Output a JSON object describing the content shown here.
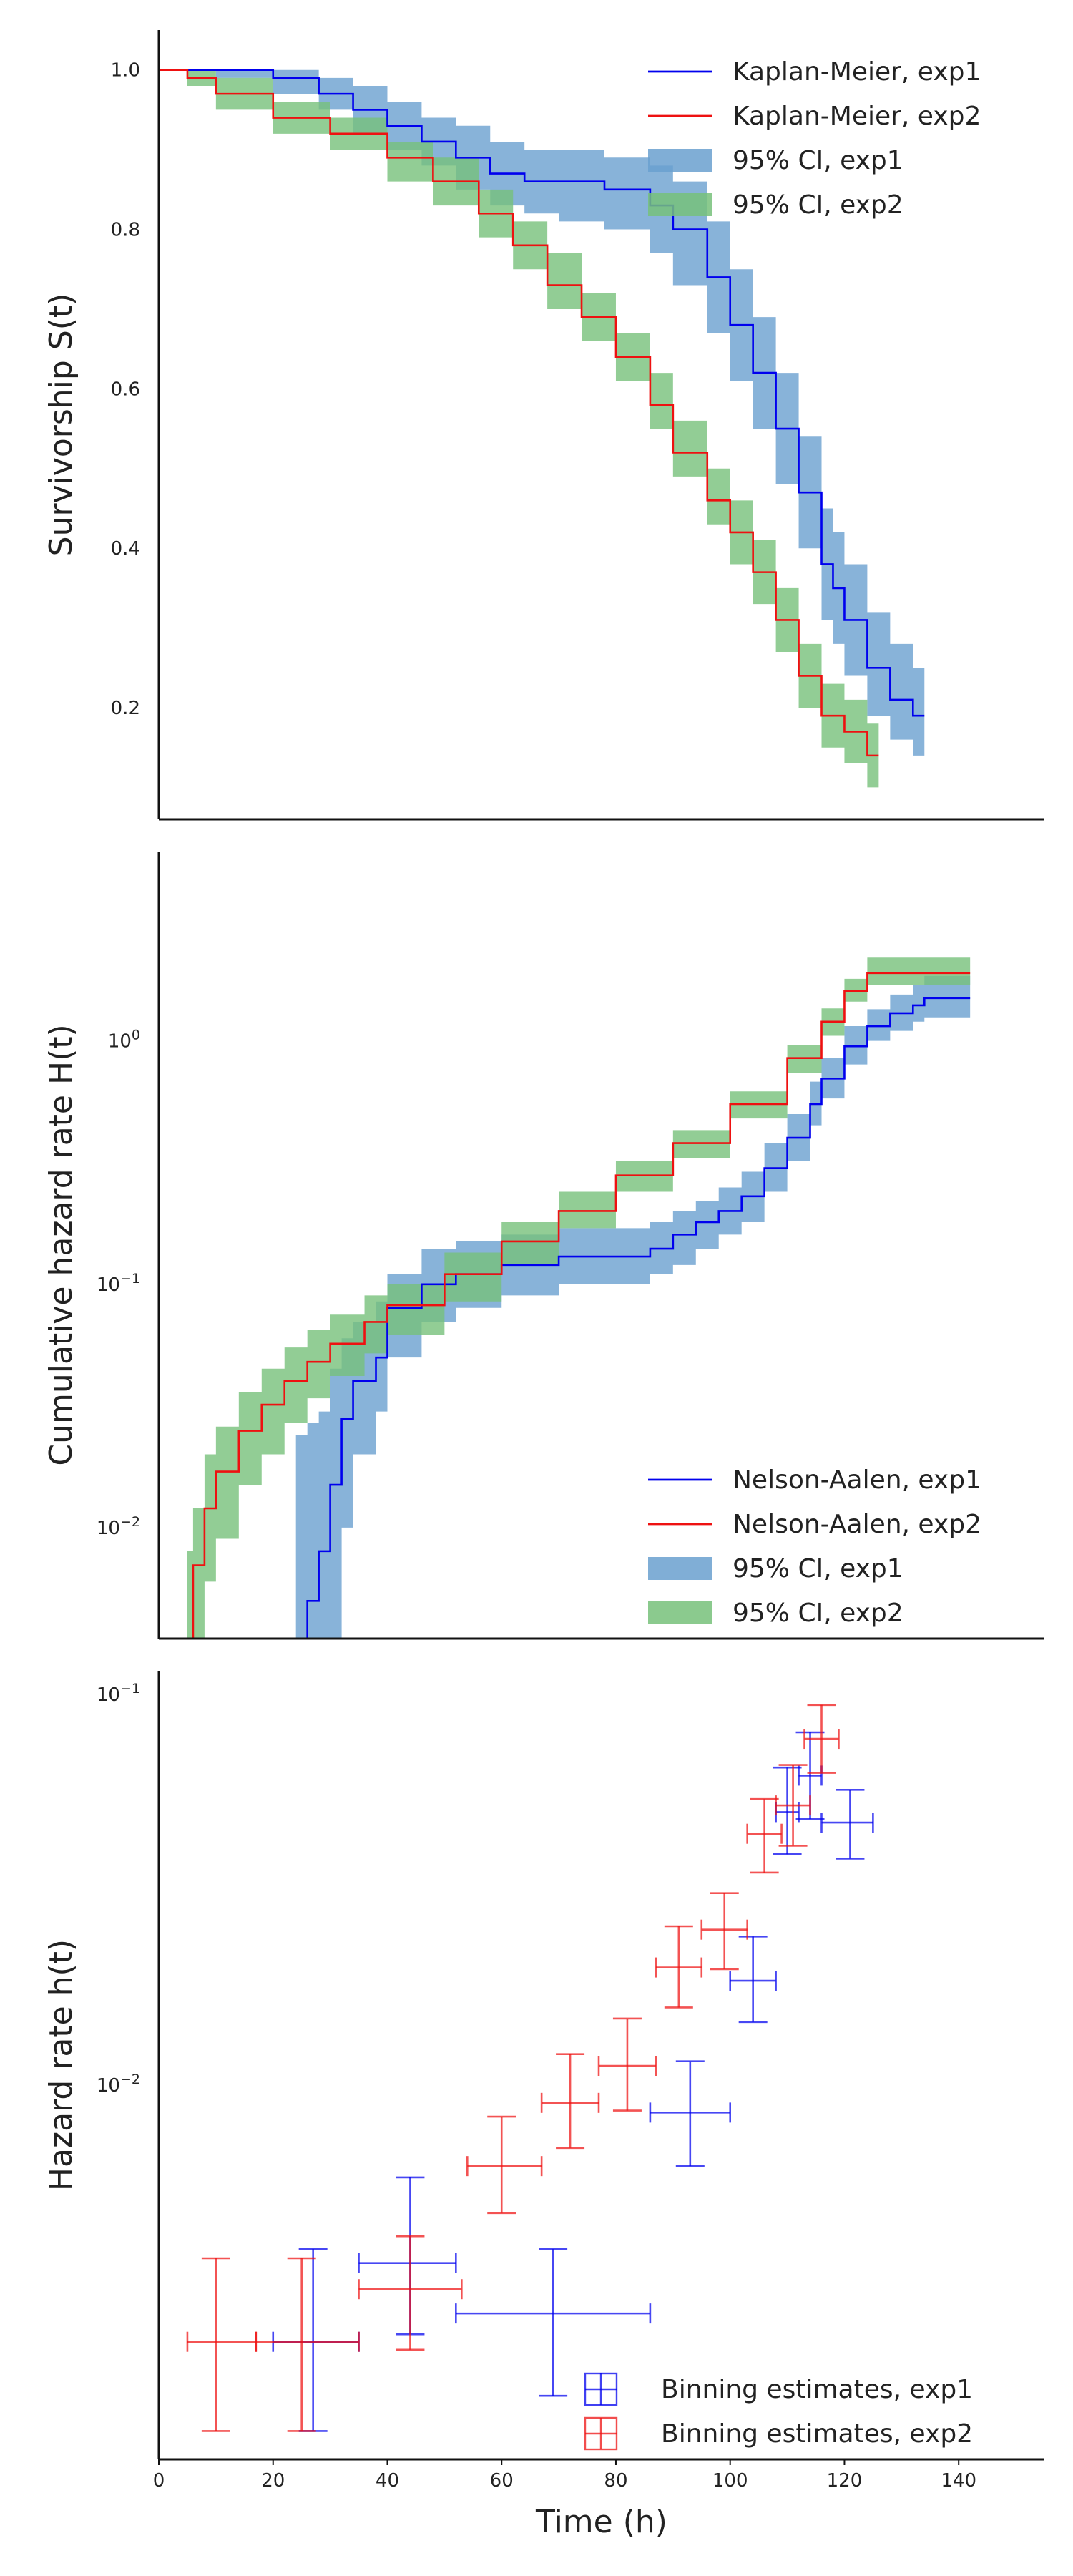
{
  "colors": {
    "exp1_line": "#0000ee",
    "exp2_line": "#ee1111",
    "exp1_band": "#6aa0cf",
    "exp2_band": "#77c17a",
    "axis": "#111111"
  },
  "chart_data": [
    {
      "type": "line",
      "ylabel": "Survivorship S(t)",
      "xlim": [
        0,
        155
      ],
      "ylim": [
        0.06,
        1.05
      ],
      "yscale": "linear",
      "yticks": [
        0.2,
        0.4,
        0.6,
        0.8,
        1.0
      ],
      "ytick_labels": [
        "0.2",
        "0.4",
        "0.6",
        "0.8",
        "1.0"
      ],
      "legend_position": "top-right",
      "legend": [
        "Kaplan-Meier, exp1",
        "Kaplan-Meier, exp2",
        "95% CI, exp1",
        "95% CI, exp2"
      ],
      "series": [
        {
          "name": "Kaplan-Meier, exp1",
          "x": [
            0,
            10,
            20,
            28,
            34,
            40,
            46,
            52,
            58,
            64,
            70,
            78,
            86,
            90,
            96,
            100,
            104,
            108,
            112,
            116,
            118,
            120,
            124,
            128,
            132,
            134
          ],
          "y": [
            1.0,
            1.0,
            0.99,
            0.97,
            0.95,
            0.93,
            0.91,
            0.89,
            0.87,
            0.86,
            0.86,
            0.85,
            0.83,
            0.8,
            0.74,
            0.68,
            0.62,
            0.55,
            0.47,
            0.38,
            0.35,
            0.31,
            0.25,
            0.21,
            0.19,
            0.19
          ]
        },
        {
          "name": "Kaplan-Meier, exp2",
          "x": [
            0,
            5,
            10,
            20,
            30,
            40,
            48,
            56,
            62,
            68,
            74,
            80,
            86,
            90,
            96,
            100,
            104,
            108,
            112,
            116,
            120,
            124,
            126
          ],
          "y": [
            1.0,
            0.99,
            0.97,
            0.94,
            0.92,
            0.89,
            0.86,
            0.82,
            0.78,
            0.73,
            0.69,
            0.64,
            0.58,
            0.52,
            0.46,
            0.42,
            0.37,
            0.31,
            0.24,
            0.19,
            0.17,
            0.14,
            0.14
          ]
        },
        {
          "name": "95% CI, exp1",
          "x": [
            0,
            10,
            20,
            28,
            34,
            40,
            46,
            52,
            58,
            64,
            70,
            78,
            86,
            90,
            96,
            100,
            104,
            108,
            112,
            116,
            118,
            120,
            124,
            128,
            132,
            134
          ],
          "lower": [
            1.0,
            0.99,
            0.97,
            0.95,
            0.92,
            0.9,
            0.88,
            0.85,
            0.83,
            0.82,
            0.81,
            0.8,
            0.77,
            0.73,
            0.67,
            0.61,
            0.55,
            0.48,
            0.4,
            0.31,
            0.28,
            0.24,
            0.19,
            0.16,
            0.14,
            0.14
          ],
          "upper": [
            1.0,
            1.0,
            1.0,
            0.99,
            0.98,
            0.96,
            0.94,
            0.93,
            0.91,
            0.9,
            0.9,
            0.89,
            0.88,
            0.86,
            0.81,
            0.75,
            0.69,
            0.62,
            0.54,
            0.45,
            0.42,
            0.38,
            0.32,
            0.28,
            0.25,
            0.25
          ]
        },
        {
          "name": "95% CI, exp2",
          "x": [
            0,
            5,
            10,
            20,
            30,
            40,
            48,
            56,
            62,
            68,
            74,
            80,
            86,
            90,
            96,
            100,
            104,
            108,
            112,
            116,
            120,
            124,
            126
          ],
          "lower": [
            1.0,
            0.98,
            0.95,
            0.92,
            0.9,
            0.86,
            0.83,
            0.79,
            0.75,
            0.7,
            0.66,
            0.61,
            0.55,
            0.49,
            0.43,
            0.38,
            0.33,
            0.27,
            0.2,
            0.15,
            0.13,
            0.1,
            0.1
          ],
          "upper": [
            1.0,
            1.0,
            0.99,
            0.96,
            0.94,
            0.91,
            0.89,
            0.85,
            0.81,
            0.77,
            0.72,
            0.67,
            0.62,
            0.56,
            0.5,
            0.46,
            0.41,
            0.35,
            0.28,
            0.23,
            0.21,
            0.18,
            0.18
          ]
        }
      ]
    },
    {
      "type": "line",
      "ylabel": "Cumulative hazard rate H(t)",
      "xlim": [
        0,
        155
      ],
      "ylim": [
        0.0035,
        6.0
      ],
      "yscale": "log",
      "yticks": [
        0.01,
        0.1,
        1
      ],
      "ytick_labels": [
        "10^-2",
        "10^-1",
        "10^0"
      ],
      "legend_position": "bottom-right",
      "legend": [
        "Nelson-Aalen, exp1",
        "Nelson-Aalen, exp2",
        "95% CI, exp1",
        "95% CI, exp2"
      ],
      "series": [
        {
          "name": "Nelson-Aalen, exp1",
          "x": [
            24,
            26,
            28,
            30,
            32,
            34,
            38,
            40,
            46,
            52,
            60,
            70,
            80,
            86,
            90,
            94,
            98,
            102,
            106,
            110,
            114,
            116,
            120,
            124,
            128,
            132,
            134,
            138,
            142
          ],
          "y": [
            0.0035,
            0.005,
            0.008,
            0.015,
            0.028,
            0.04,
            0.05,
            0.08,
            0.1,
            0.11,
            0.12,
            0.13,
            0.13,
            0.14,
            0.16,
            0.18,
            0.2,
            0.23,
            0.3,
            0.4,
            0.55,
            0.7,
            0.95,
            1.15,
            1.3,
            1.4,
            1.5,
            1.5,
            1.5
          ]
        },
        {
          "name": "Nelson-Aalen, exp2",
          "x": [
            5,
            6,
            8,
            10,
            14,
            18,
            22,
            26,
            30,
            36,
            40,
            50,
            60,
            70,
            80,
            90,
            100,
            110,
            116,
            120,
            124,
            128,
            132,
            136,
            140,
            142
          ],
          "y": [
            0.0035,
            0.007,
            0.012,
            0.017,
            0.025,
            0.032,
            0.04,
            0.048,
            0.057,
            0.07,
            0.082,
            0.11,
            0.15,
            0.2,
            0.28,
            0.38,
            0.55,
            0.85,
            1.2,
            1.6,
            1.9,
            1.9,
            1.9,
            1.9,
            1.9,
            1.9
          ]
        },
        {
          "name": "95% CI, exp1",
          "x": [
            24,
            26,
            28,
            30,
            32,
            34,
            38,
            40,
            46,
            52,
            60,
            70,
            80,
            86,
            90,
            94,
            98,
            102,
            106,
            110,
            114,
            116,
            120,
            124,
            128,
            132,
            134,
            138,
            142
          ],
          "lower": [
            0.0035,
            0.0035,
            0.0035,
            0.0035,
            0.01,
            0.02,
            0.03,
            0.05,
            0.07,
            0.08,
            0.09,
            0.1,
            0.1,
            0.11,
            0.12,
            0.14,
            0.16,
            0.18,
            0.24,
            0.32,
            0.45,
            0.58,
            0.8,
            1.0,
            1.1,
            1.2,
            1.25,
            1.25,
            1.25
          ],
          "upper": [
            0.024,
            0.027,
            0.03,
            0.045,
            0.06,
            0.07,
            0.085,
            0.11,
            0.14,
            0.15,
            0.16,
            0.17,
            0.17,
            0.18,
            0.2,
            0.22,
            0.25,
            0.29,
            0.38,
            0.5,
            0.68,
            0.85,
            1.15,
            1.35,
            1.55,
            1.7,
            1.85,
            1.85,
            1.85
          ]
        },
        {
          "name": "95% CI, exp2",
          "x": [
            5,
            6,
            8,
            10,
            14,
            18,
            22,
            26,
            30,
            36,
            40,
            50,
            60,
            70,
            80,
            90,
            100,
            110,
            116,
            120,
            124,
            128,
            132,
            136,
            140,
            142
          ],
          "lower": [
            0.0035,
            0.0035,
            0.006,
            0.009,
            0.015,
            0.02,
            0.027,
            0.034,
            0.042,
            0.052,
            0.062,
            0.085,
            0.12,
            0.17,
            0.24,
            0.33,
            0.48,
            0.74,
            1.05,
            1.45,
            1.7,
            1.7,
            1.7,
            1.7,
            1.7,
            1.7
          ],
          "upper": [
            0.008,
            0.012,
            0.02,
            0.026,
            0.036,
            0.045,
            0.055,
            0.065,
            0.075,
            0.09,
            0.1,
            0.135,
            0.18,
            0.24,
            0.32,
            0.43,
            0.62,
            0.96,
            1.36,
            1.8,
            2.2,
            2.2,
            2.2,
            2.2,
            2.2,
            2.2
          ]
        }
      ]
    },
    {
      "type": "scatter",
      "xlabel": "Time (h)",
      "ylabel": "Hazard rate h(t)",
      "xlim": [
        0,
        155
      ],
      "ylim": [
        0.0011,
        0.115
      ],
      "yscale": "log",
      "xticks": [
        0,
        20,
        40,
        60,
        80,
        100,
        120,
        140
      ],
      "xtick_labels": [
        "0",
        "20",
        "40",
        "60",
        "80",
        "100",
        "120",
        "140"
      ],
      "yticks": [
        0.01,
        0.1
      ],
      "ytick_labels": [
        "10^-2",
        "10^-1"
      ],
      "legend_position": "bottom-right",
      "legend": [
        "Binning estimates, exp1",
        "Binning estimates, exp2"
      ],
      "series": [
        {
          "name": "Binning estimates, exp1",
          "points": [
            {
              "x": 27,
              "xmin": 20,
              "xmax": 35,
              "y": 0.0022,
              "ylo": 0.0013,
              "yhi": 0.0038
            },
            {
              "x": 44,
              "xmin": 35,
              "xmax": 52,
              "y": 0.0035,
              "ylo": 0.0023,
              "yhi": 0.0058
            },
            {
              "x": 69,
              "xmin": 52,
              "xmax": 86,
              "y": 0.0026,
              "ylo": 0.0016,
              "yhi": 0.0038
            },
            {
              "x": 93,
              "xmin": 86,
              "xmax": 100,
              "y": 0.0085,
              "ylo": 0.0062,
              "yhi": 0.0115
            },
            {
              "x": 104,
              "xmin": 100,
              "xmax": 108,
              "y": 0.0185,
              "ylo": 0.0145,
              "yhi": 0.024
            },
            {
              "x": 110,
              "xmin": 108,
              "xmax": 112,
              "y": 0.05,
              "ylo": 0.039,
              "yhi": 0.065
            },
            {
              "x": 114,
              "xmin": 112,
              "xmax": 116,
              "y": 0.062,
              "ylo": 0.048,
              "yhi": 0.08
            },
            {
              "x": 121,
              "xmin": 116,
              "xmax": 125,
              "y": 0.047,
              "ylo": 0.038,
              "yhi": 0.057
            }
          ]
        },
        {
          "name": "Binning estimates, exp2",
          "points": [
            {
              "x": 10,
              "xmin": 5,
              "xmax": 17,
              "y": 0.0022,
              "ylo": 0.0013,
              "yhi": 0.0036
            },
            {
              "x": 25,
              "xmin": 17,
              "xmax": 35,
              "y": 0.0022,
              "ylo": 0.0013,
              "yhi": 0.0036
            },
            {
              "x": 44,
              "xmin": 35,
              "xmax": 53,
              "y": 0.003,
              "ylo": 0.0021,
              "yhi": 0.0041
            },
            {
              "x": 60,
              "xmin": 54,
              "xmax": 67,
              "y": 0.0062,
              "ylo": 0.0047,
              "yhi": 0.0083
            },
            {
              "x": 72,
              "xmin": 67,
              "xmax": 77,
              "y": 0.009,
              "ylo": 0.0069,
              "yhi": 0.012
            },
            {
              "x": 82,
              "xmin": 77,
              "xmax": 87,
              "y": 0.0112,
              "ylo": 0.0086,
              "yhi": 0.0148
            },
            {
              "x": 91,
              "xmin": 87,
              "xmax": 95,
              "y": 0.02,
              "ylo": 0.0158,
              "yhi": 0.0255
            },
            {
              "x": 99,
              "xmin": 95,
              "xmax": 103,
              "y": 0.025,
              "ylo": 0.0198,
              "yhi": 0.031
            },
            {
              "x": 106,
              "xmin": 103,
              "xmax": 109,
              "y": 0.044,
              "ylo": 0.035,
              "yhi": 0.054
            },
            {
              "x": 111,
              "xmin": 108,
              "xmax": 114,
              "y": 0.052,
              "ylo": 0.041,
              "yhi": 0.066
            },
            {
              "x": 116,
              "xmin": 113,
              "xmax": 119,
              "y": 0.077,
              "ylo": 0.063,
              "yhi": 0.094
            }
          ]
        }
      ]
    }
  ]
}
